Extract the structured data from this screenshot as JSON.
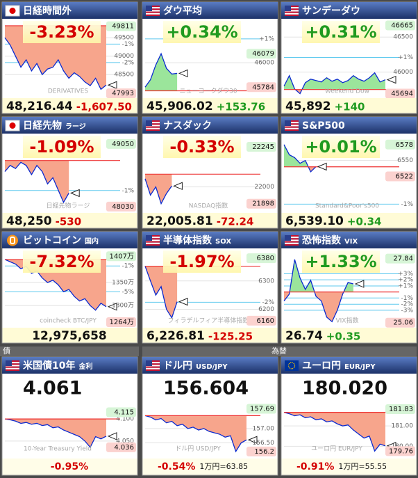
{
  "sections": [
    "債",
    "為替"
  ],
  "tiles": [
    {
      "style": "quote",
      "flag": "jp",
      "title": "日経時間外",
      "pct": "-3.23%",
      "price": "48,216.44",
      "change": "-1,607.50",
      "watermark": "DERIVATIVES",
      "ylim": [
        47900,
        49900
      ],
      "base": 49824,
      "hi": 49811,
      "lo": 47993,
      "ticks": [
        49500,
        49000,
        48500
      ],
      "pct_ticks": [
        {
          "value": 49326,
          "label": "-1%"
        },
        {
          "value": 48828,
          "label": "-2%"
        }
      ],
      "values": [
        49500,
        49300,
        49000,
        48700,
        48900,
        48600,
        48800,
        48500,
        48650,
        48700,
        48900,
        48600,
        48400,
        48550,
        48450,
        48300,
        48200,
        48400,
        48100,
        48216.44
      ]
    },
    {
      "style": "quote",
      "flag": "us",
      "title": "ダウ平均",
      "pct": "+0.34%",
      "price": "45,906.02",
      "change": "+153.76",
      "watermark": "ニューヨークダウ30",
      "ylim": [
        45700,
        46350
      ],
      "base": 45752,
      "hi": 46079,
      "lo": 45784,
      "ticks": [
        46000
      ],
      "pct_ticks": [
        {
          "value": 46210,
          "label": "+1%"
        }
      ],
      "values": [
        45784,
        45850,
        45980,
        46079,
        45950,
        45900,
        45906.02,
        null,
        null,
        null,
        null,
        null,
        null,
        null,
        null,
        null,
        null,
        null,
        null,
        null
      ]
    },
    {
      "style": "quote",
      "flag": "us",
      "title": "サンデーダウ",
      "pct": "+0.31%",
      "price": "45,892",
      "change": "+140",
      "watermark": "Weekend Dow",
      "ylim": [
        45650,
        46700
      ],
      "base": 45752,
      "hi": 46665,
      "lo": 45694,
      "ticks": [
        46500,
        46000
      ],
      "pct_ticks": [
        {
          "value": 46210,
          "label": "+1%"
        }
      ],
      "values": [
        45800,
        45950,
        45760,
        45694,
        45850,
        45900,
        45880,
        45860,
        45920,
        45870,
        45900,
        45850,
        45880,
        45950,
        45900,
        45870,
        45920,
        45990,
        45860,
        45892
      ]
    },
    {
      "style": "quote",
      "flag": "jp",
      "title": "日経先物",
      "sub": "ラージ",
      "pct": "-1.09%",
      "price": "48,250",
      "change": "-530",
      "watermark": "日経先物ラージ",
      "ylim": [
        47950,
        49150
      ],
      "base": 48780,
      "hi": 49050,
      "lo": 48030,
      "ticks": [],
      "pct_ticks": [
        {
          "value": 48292,
          "label": "-1%"
        }
      ],
      "values": [
        48600,
        48700,
        48650,
        48750,
        48700,
        48550,
        48700,
        48600,
        48400,
        48500,
        48300,
        48100,
        48250,
        null,
        null,
        null,
        null,
        null,
        null,
        null
      ]
    },
    {
      "style": "quote",
      "flag": "us",
      "title": "ナスダック",
      "pct": "-0.33%",
      "price": "22,005.81",
      "change": "-72.24",
      "watermark": "NASDAQ指数",
      "ylim": [
        21850,
        22300
      ],
      "base": 22078,
      "hi": 22245,
      "lo": 21898,
      "ticks": [
        22000
      ],
      "pct_ticks": [],
      "values": [
        22050,
        21950,
        22000,
        21898,
        21960,
        22005.81,
        null,
        null,
        null,
        null,
        null,
        null,
        null,
        null,
        null,
        null,
        null,
        null,
        null,
        null
      ]
    },
    {
      "style": "quote",
      "flag": "us",
      "title": "S&P500",
      "pct": "+0.01%",
      "price": "6,539.10",
      "change": "+0.34",
      "watermark": "Standard&Poor's500",
      "ylim": [
        6460,
        6590
      ],
      "base": 6538.76,
      "hi": 6578,
      "lo": 6522,
      "ticks": [
        6550
      ],
      "pct_ticks": [
        {
          "value": 6473,
          "label": "-1%"
        }
      ],
      "values": [
        6578,
        6560,
        6555,
        6545,
        6550,
        6530,
        6539.1,
        null,
        null,
        null,
        null,
        null,
        null,
        null,
        null,
        null,
        null,
        null,
        null,
        null
      ]
    },
    {
      "style": "quote",
      "flag": "btc",
      "title": "ビットコイン",
      "sub": "国内",
      "pct": "-7.32%",
      "price": "12,975,658",
      "watermark": "coincheck BTC/JPY",
      "ylim": [
        12550000,
        14150000
      ],
      "base": 14000000,
      "hi": {
        "value": 14070000,
        "label": "1407万"
      },
      "lo": {
        "value": 12640000,
        "label": "1264万"
      },
      "ticks": [
        {
          "value": 13500000,
          "label": "1350万"
        },
        {
          "value": 13000000,
          "label": "1300万"
        }
      ],
      "pct_ticks": [
        {
          "value": 13860000,
          "label": "-1%"
        },
        {
          "value": 13300000,
          "label": "-5%"
        }
      ],
      "values": [
        14000000,
        13950000,
        13900000,
        13800000,
        13850000,
        13700000,
        13750000,
        13600000,
        13500000,
        13550000,
        13450000,
        13300000,
        13350000,
        13200000,
        13100000,
        13150000,
        13000000,
        12900000,
        13050000,
        12975658
      ]
    },
    {
      "style": "quote",
      "flag": "us",
      "title": "半導体指数",
      "sub": "SOX",
      "pct": "-1.97%",
      "price": "6,226.81",
      "change": "-125.25",
      "watermark": "フィラデルフィア半導体指数",
      "ylim": [
        6140,
        6400
      ],
      "base": 6352,
      "hi": 6380,
      "lo": 6160,
      "ticks": [
        6300,
        6200
      ],
      "pct_ticks": [
        {
          "value": 6225,
          "label": "-2%"
        }
      ],
      "values": [
        6352,
        6300,
        6250,
        6280,
        6200,
        6170,
        6226.81,
        null,
        null,
        null,
        null,
        null,
        null,
        null,
        null,
        null,
        null,
        null,
        null,
        null
      ]
    },
    {
      "style": "quote",
      "flag": "us",
      "title": "恐怖指数",
      "sub": "VIX",
      "pct": "+1.33%",
      "price": "26.74",
      "change": "+0.35",
      "watermark": "VIX指数",
      "ylim": [
        24.9,
        28.1
      ],
      "base": 26.39,
      "hi": 27.84,
      "lo": 25.06,
      "ticks": [],
      "pct_ticks": [
        {
          "value": 27.18,
          "label": "+3%"
        },
        {
          "value": 26.92,
          "label": "+2%"
        },
        {
          "value": 26.65,
          "label": "+1%"
        },
        {
          "value": 26.13,
          "label": "-1%"
        },
        {
          "value": 25.86,
          "label": "-2%"
        },
        {
          "value": 25.6,
          "label": "-3%"
        }
      ],
      "values": [
        26.0,
        26.3,
        27.8,
        27.0,
        26.5,
        26.9,
        26.2,
        26.0,
        25.3,
        25.1,
        25.6,
        26.3,
        26.8,
        26.74,
        null,
        null,
        null,
        null,
        null,
        null
      ]
    },
    {
      "style": "rate",
      "flag": "us",
      "title": "米国債10年",
      "sub": "金利",
      "price": "4.061",
      "pct": "-0.95%",
      "watermark": "10-Year Treasury Yield",
      "ylim": [
        4.02,
        4.13
      ],
      "base": 4.1,
      "hi": 4.115,
      "lo": 4.036,
      "ticks": [
        {
          "value": 4.1,
          "label": "4.100"
        },
        {
          "value": 4.05,
          "label": "4.050"
        }
      ],
      "pct_ticks": [],
      "values": [
        4.1,
        4.098,
        4.095,
        4.09,
        4.092,
        4.088,
        4.09,
        4.085,
        4.087,
        4.08,
        4.082,
        4.075,
        4.07,
        4.065,
        4.06,
        4.05,
        4.036,
        4.06,
        4.055,
        4.061
      ]
    },
    {
      "style": "rate",
      "flag": "us",
      "title": "ドル円",
      "sub": "USD/JPY",
      "price": "156.604",
      "pct": "-0.54%",
      "note": "1万円=63.85",
      "watermark": "ドル円 USD/JPY",
      "ylim": [
        156.1,
        157.8
      ],
      "base": 157.45,
      "hi": 157.69,
      "lo": 156.2,
      "ticks": [
        {
          "value": 157,
          "label": "157.00"
        },
        {
          "value": 156.5,
          "label": "156.50"
        }
      ],
      "pct_ticks": [],
      "values": [
        157.45,
        157.4,
        157.3,
        157.35,
        157.2,
        157.25,
        157.1,
        157.15,
        157.0,
        157.05,
        156.95,
        157.0,
        156.9,
        156.85,
        156.8,
        156.7,
        156.75,
        156.2,
        156.5,
        156.604
      ]
    },
    {
      "style": "rate",
      "flag": "eu",
      "title": "ユーロ円",
      "sub": "EUR/JPY",
      "price": "180.020",
      "pct": "-0.91%",
      "note": "1万円=55.55",
      "watermark": "ユーロ円 EUR/JPY",
      "ylim": [
        179.6,
        182.0
      ],
      "base": 181.67,
      "hi": 181.83,
      "lo": 179.76,
      "ticks": [
        {
          "value": 181,
          "label": "181.00"
        },
        {
          "value": 180,
          "label": "180.00"
        }
      ],
      "pct_ticks": [],
      "values": [
        181.67,
        181.6,
        181.5,
        181.55,
        181.4,
        181.45,
        181.3,
        181.35,
        181.2,
        181.25,
        181.1,
        181.0,
        181.05,
        180.8,
        180.6,
        180.4,
        180.5,
        179.76,
        180.1,
        180.02
      ]
    }
  ]
}
